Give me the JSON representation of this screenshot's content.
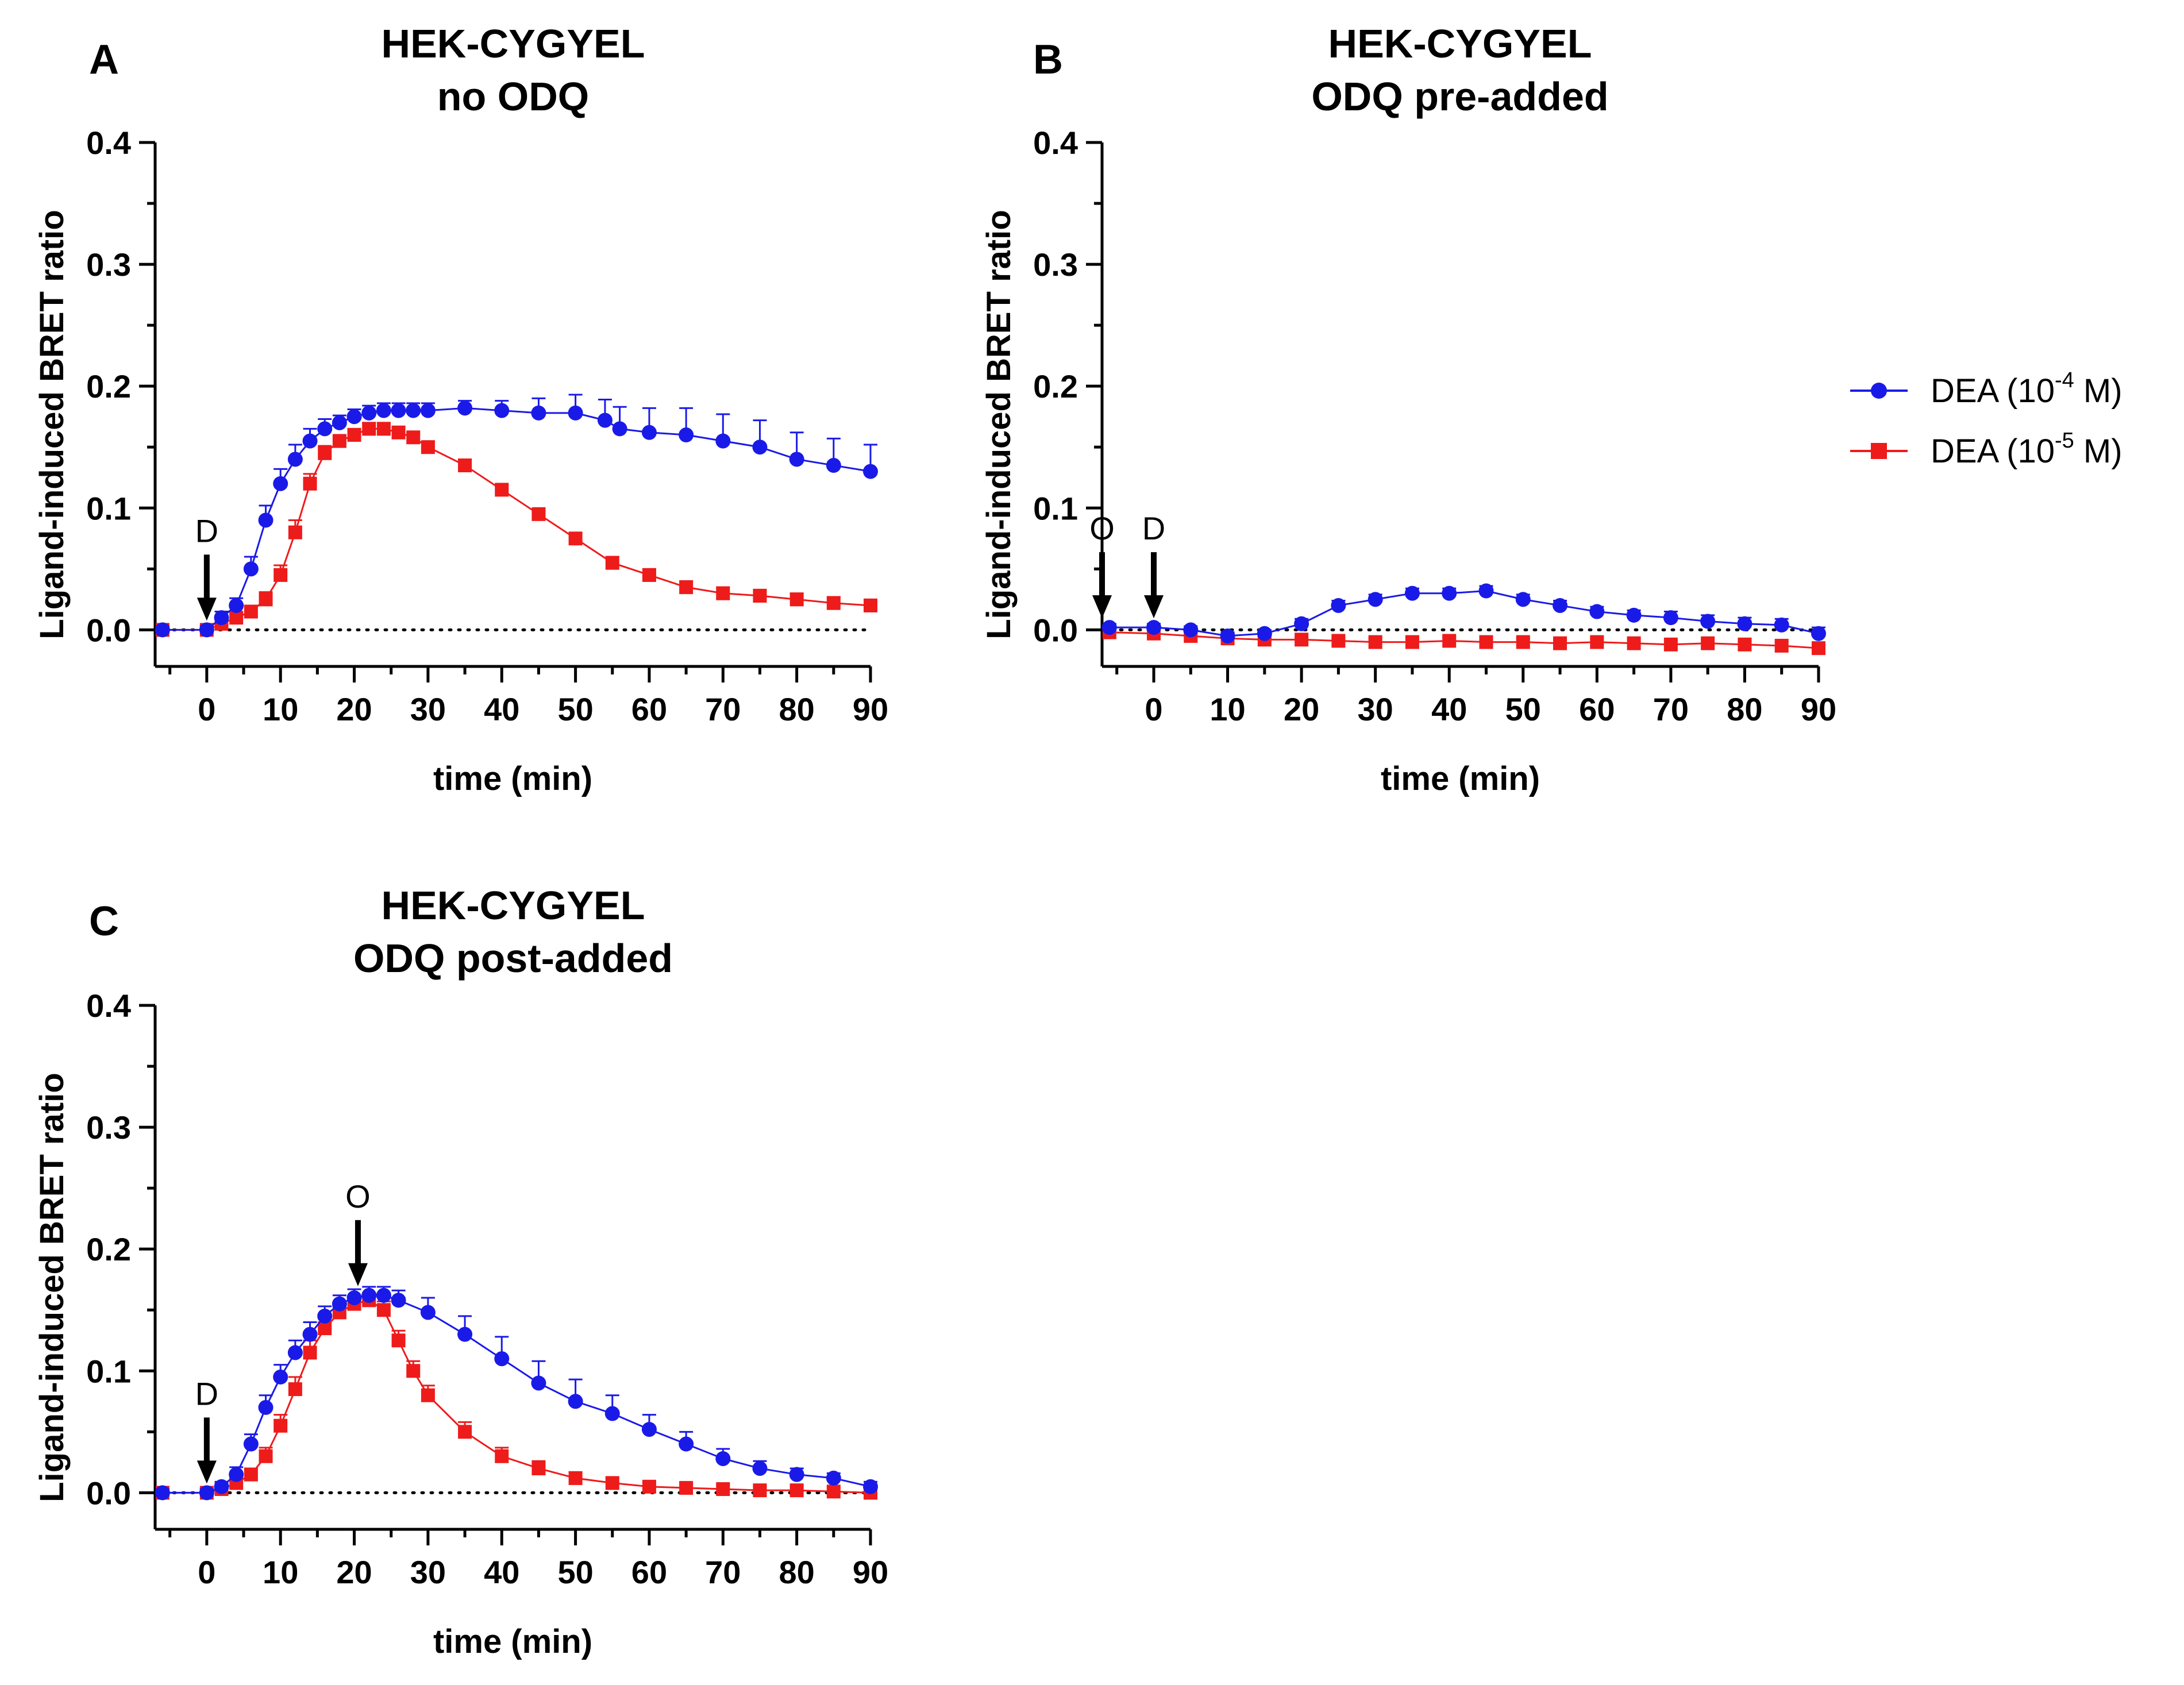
{
  "legend": {
    "series": [
      {
        "prefix": "DEA (10",
        "sup": "-4",
        "suffix": " M)",
        "color": "#1a1ae8",
        "marker": "circle"
      },
      {
        "prefix": "DEA (10",
        "sup": "-5",
        "suffix": " M)",
        "color": "#ee1b1b",
        "marker": "square"
      }
    ]
  },
  "chart_data": [
    {
      "panel": "A",
      "type": "line",
      "title": [
        "HEK-CYGYEL",
        "no ODQ"
      ],
      "xlabel": "time (min)",
      "ylabel": "Ligand-induced BRET ratio",
      "xlim": [
        -7,
        90
      ],
      "ylim": [
        -0.03,
        0.4
      ],
      "xticks": [
        0,
        10,
        20,
        30,
        40,
        50,
        60,
        70,
        80,
        90
      ],
      "yticks": [
        "0.0",
        "0.1",
        "0.2",
        "0.3",
        "0.4"
      ],
      "annotations": [
        {
          "label": "D",
          "x": 0
        }
      ],
      "series": [
        {
          "name": "DEA (10^-4 M)",
          "x": [
            -6,
            0,
            2,
            4,
            6,
            8,
            10,
            12,
            14,
            16,
            18,
            20,
            22,
            24,
            26,
            28,
            30,
            35,
            40,
            45,
            50,
            54,
            56,
            60,
            65,
            70,
            75,
            80,
            85,
            90
          ],
          "y": [
            0.0,
            0.0,
            0.01,
            0.02,
            0.05,
            0.09,
            0.12,
            0.14,
            0.155,
            0.165,
            0.17,
            0.175,
            0.178,
            0.18,
            0.18,
            0.18,
            0.18,
            0.182,
            0.18,
            0.178,
            0.178,
            0.172,
            0.165,
            0.162,
            0.16,
            0.155,
            0.15,
            0.14,
            0.135,
            0.13
          ],
          "err": [
            0.003,
            0.003,
            0.005,
            0.006,
            0.01,
            0.012,
            0.012,
            0.012,
            0.01,
            0.008,
            0.006,
            0.006,
            0.006,
            0.006,
            0.006,
            0.006,
            0.006,
            0.006,
            0.008,
            0.012,
            0.015,
            0.017,
            0.018,
            0.02,
            0.022,
            0.022,
            0.022,
            0.022,
            0.022,
            0.022
          ]
        },
        {
          "name": "DEA (10^-5 M)",
          "x": [
            -6,
            0,
            2,
            4,
            6,
            8,
            10,
            12,
            14,
            16,
            18,
            20,
            22,
            24,
            26,
            28,
            30,
            35,
            40,
            45,
            50,
            55,
            60,
            65,
            70,
            75,
            80,
            85,
            90
          ],
          "y": [
            0.0,
            0.0,
            0.005,
            0.01,
            0.015,
            0.025,
            0.045,
            0.08,
            0.12,
            0.145,
            0.155,
            0.16,
            0.165,
            0.165,
            0.162,
            0.158,
            0.15,
            0.135,
            0.115,
            0.095,
            0.075,
            0.055,
            0.045,
            0.035,
            0.03,
            0.028,
            0.025,
            0.022,
            0.02
          ],
          "err": [
            0.003,
            0.003,
            0.004,
            0.004,
            0.005,
            0.006,
            0.008,
            0.01,
            0.008,
            0.006,
            0.005,
            0.005,
            0.005,
            0.005,
            0.004,
            0.004,
            0.004,
            0.004,
            0.004,
            0.004,
            0.004,
            0.005,
            0.005,
            0.005,
            0.005,
            0.005,
            0.005,
            0.005,
            0.005
          ]
        }
      ]
    },
    {
      "panel": "B",
      "type": "line",
      "title": [
        "HEK-CYGYEL",
        "ODQ pre-added"
      ],
      "xlabel": "time (min)",
      "ylabel": "Ligand-induced BRET ratio",
      "xlim": [
        -7,
        90
      ],
      "ylim": [
        -0.03,
        0.4
      ],
      "xticks": [
        0,
        10,
        20,
        30,
        40,
        50,
        60,
        70,
        80,
        90
      ],
      "yticks": [
        "0.0",
        "0.1",
        "0.2",
        "0.3",
        "0.4"
      ],
      "annotations": [
        {
          "label": "O",
          "x": -7
        },
        {
          "label": "D",
          "x": 0
        }
      ],
      "series": [
        {
          "name": "DEA (10^-4 M)",
          "x": [
            -6,
            0,
            5,
            10,
            15,
            20,
            25,
            30,
            35,
            40,
            45,
            50,
            55,
            60,
            65,
            70,
            75,
            80,
            85,
            90
          ],
          "y": [
            0.002,
            0.002,
            0.0,
            -0.005,
            -0.003,
            0.005,
            0.02,
            0.025,
            0.03,
            0.03,
            0.032,
            0.025,
            0.02,
            0.015,
            0.012,
            0.01,
            0.007,
            0.005,
            0.004,
            -0.003
          ],
          "err": [
            0.003,
            0.003,
            0.003,
            0.003,
            0.003,
            0.004,
            0.004,
            0.004,
            0.004,
            0.004,
            0.004,
            0.004,
            0.004,
            0.004,
            0.004,
            0.005,
            0.005,
            0.005,
            0.005,
            0.005
          ]
        },
        {
          "name": "DEA (10^-5 M)",
          "x": [
            -6,
            0,
            5,
            10,
            15,
            20,
            25,
            30,
            35,
            40,
            45,
            50,
            55,
            60,
            65,
            70,
            75,
            80,
            85,
            90
          ],
          "y": [
            -0.002,
            -0.003,
            -0.005,
            -0.007,
            -0.008,
            -0.008,
            -0.009,
            -0.01,
            -0.01,
            -0.009,
            -0.01,
            -0.01,
            -0.011,
            -0.01,
            -0.011,
            -0.012,
            -0.011,
            -0.012,
            -0.013,
            -0.015
          ],
          "err": [
            0.002,
            0.002,
            0.002,
            0.002,
            0.002,
            0.002,
            0.002,
            0.003,
            0.003,
            0.003,
            0.003,
            0.003,
            0.003,
            0.003,
            0.003,
            0.003,
            0.003,
            0.003,
            0.003,
            0.003
          ]
        }
      ]
    },
    {
      "panel": "C",
      "type": "line",
      "title": [
        "HEK-CYGYEL",
        "ODQ post-added"
      ],
      "xlabel": "time (min)",
      "ylabel": "Ligand-induced BRET ratio",
      "xlim": [
        -7,
        90
      ],
      "ylim": [
        -0.03,
        0.4
      ],
      "xticks": [
        0,
        10,
        20,
        30,
        40,
        50,
        60,
        70,
        80,
        90
      ],
      "yticks": [
        "0.0",
        "0.1",
        "0.2",
        "0.3",
        "0.4"
      ],
      "annotations": [
        {
          "label": "D",
          "x": 0
        },
        {
          "label": "O",
          "x": 20.5
        }
      ],
      "series": [
        {
          "name": "DEA (10^-4 M)",
          "x": [
            -6,
            0,
            2,
            4,
            6,
            8,
            10,
            12,
            14,
            16,
            18,
            20,
            22,
            24,
            26,
            30,
            35,
            40,
            45,
            50,
            55,
            60,
            65,
            70,
            75,
            80,
            85,
            90
          ],
          "y": [
            0.0,
            0.0,
            0.005,
            0.015,
            0.04,
            0.07,
            0.095,
            0.115,
            0.13,
            0.145,
            0.155,
            0.16,
            0.162,
            0.162,
            0.158,
            0.148,
            0.13,
            0.11,
            0.09,
            0.075,
            0.065,
            0.052,
            0.04,
            0.028,
            0.02,
            0.015,
            0.012,
            0.005
          ],
          "err": [
            0.003,
            0.003,
            0.004,
            0.006,
            0.008,
            0.01,
            0.01,
            0.01,
            0.01,
            0.008,
            0.007,
            0.007,
            0.007,
            0.007,
            0.008,
            0.012,
            0.015,
            0.018,
            0.018,
            0.018,
            0.015,
            0.012,
            0.01,
            0.008,
            0.006,
            0.005,
            0.004,
            0.004
          ]
        },
        {
          "name": "DEA (10^-5 M)",
          "x": [
            -6,
            0,
            2,
            4,
            6,
            8,
            10,
            12,
            14,
            16,
            18,
            20,
            22,
            24,
            26,
            28,
            30,
            35,
            40,
            45,
            50,
            55,
            60,
            65,
            70,
            75,
            80,
            85,
            90
          ],
          "y": [
            0.0,
            0.0,
            0.003,
            0.008,
            0.015,
            0.03,
            0.055,
            0.085,
            0.115,
            0.135,
            0.148,
            0.155,
            0.158,
            0.15,
            0.125,
            0.1,
            0.08,
            0.05,
            0.03,
            0.02,
            0.012,
            0.008,
            0.005,
            0.004,
            0.003,
            0.002,
            0.002,
            0.001,
            0.0
          ],
          "err": [
            0.002,
            0.002,
            0.003,
            0.004,
            0.005,
            0.007,
            0.009,
            0.01,
            0.01,
            0.008,
            0.007,
            0.006,
            0.006,
            0.007,
            0.008,
            0.008,
            0.008,
            0.008,
            0.007,
            0.006,
            0.005,
            0.004,
            0.004,
            0.003,
            0.003,
            0.003,
            0.003,
            0.003,
            0.003
          ]
        }
      ]
    }
  ]
}
